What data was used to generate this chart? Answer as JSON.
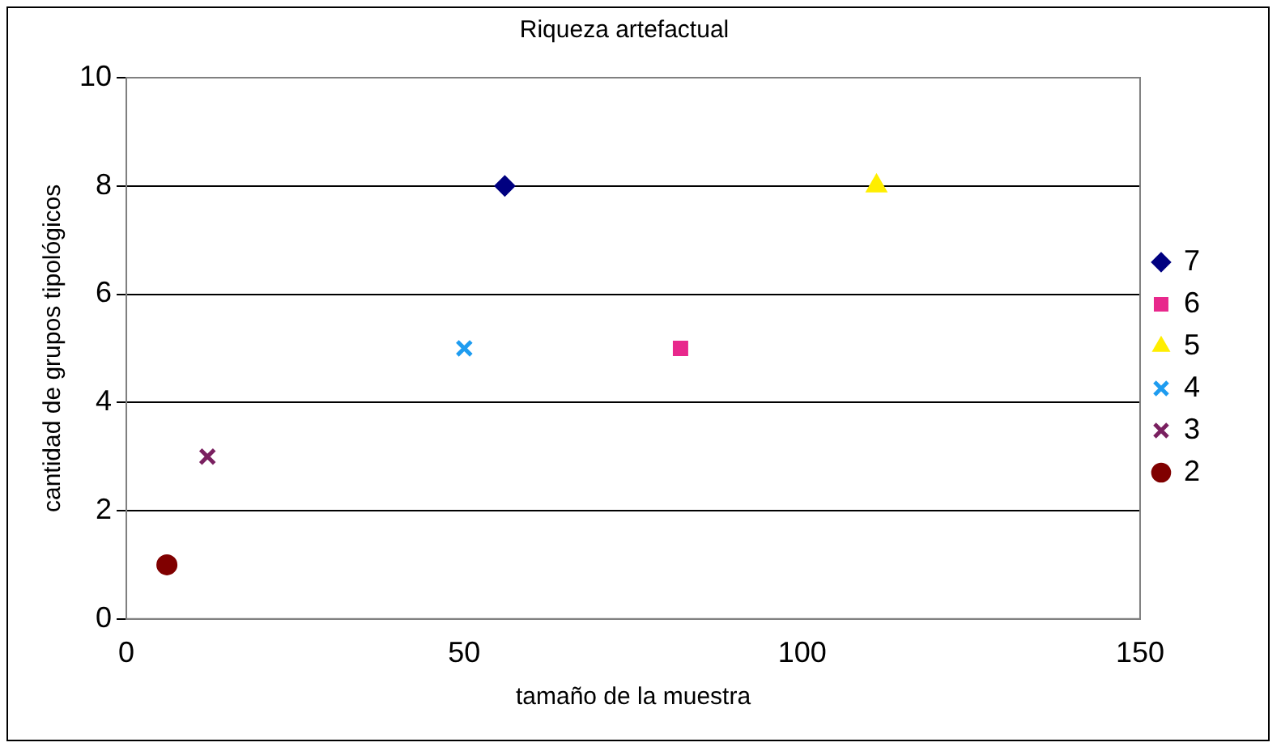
{
  "chart_data": {
    "type": "scatter",
    "title": "Riqueza artefactual",
    "xlabel": "tamaño de la muestra",
    "ylabel": "cantidad de grupos tipológicos",
    "xlim": [
      0,
      150
    ],
    "xticks": [
      0,
      50,
      100,
      150
    ],
    "ylim": [
      0,
      10
    ],
    "yticks": [
      0,
      2,
      4,
      6,
      8,
      10
    ],
    "grid": "y",
    "legend": "right",
    "series": [
      {
        "name": "7",
        "color": "#000080",
        "marker": "diamond",
        "x": [
          56
        ],
        "values": [
          8
        ]
      },
      {
        "name": "6",
        "color": "#e8288c",
        "marker": "square",
        "x": [
          82
        ],
        "values": [
          5
        ]
      },
      {
        "name": "5",
        "color": "#ffee00",
        "marker": "triangle",
        "x": [
          111
        ],
        "values": [
          8
        ]
      },
      {
        "name": "4",
        "color": "#1e9cf0",
        "marker": "cross",
        "x": [
          50
        ],
        "values": [
          5
        ]
      },
      {
        "name": "3",
        "color": "#7a2060",
        "marker": "cross",
        "x": [
          12
        ],
        "values": [
          3
        ]
      },
      {
        "name": "2",
        "color": "#800000",
        "marker": "circle",
        "x": [
          6
        ],
        "values": [
          1
        ]
      }
    ]
  }
}
